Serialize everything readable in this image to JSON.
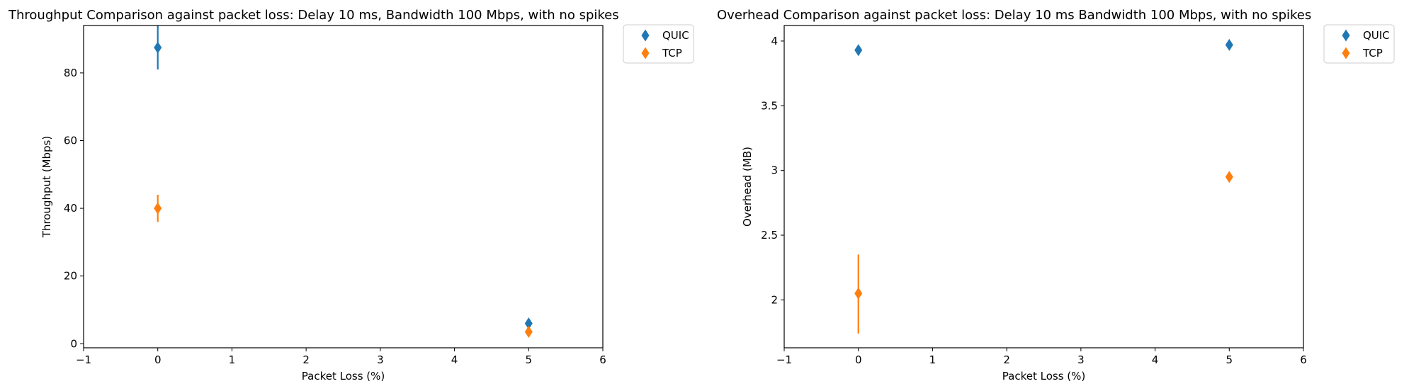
{
  "colors": {
    "quic": "#1f77b4",
    "tcp": "#ff7f0e",
    "axis": "#000000"
  },
  "chart_data": [
    {
      "type": "scatter",
      "title": "Throughput Comparison against packet loss: Delay 10 ms, Bandwidth 100 Mbps, with no spikes",
      "xlabel": "Packet Loss (%)",
      "ylabel": "Throughput (Mbps)",
      "xlim": [
        -1,
        6
      ],
      "ylim": [
        -1.2,
        94
      ],
      "xticks": [
        -1,
        0,
        1,
        2,
        3,
        4,
        5,
        6
      ],
      "yticks": [
        0,
        20,
        40,
        60,
        80
      ],
      "legend_position": "outside-top-right",
      "series": [
        {
          "name": "QUIC",
          "color_key": "quic",
          "x": [
            0,
            5
          ],
          "y": [
            87.5,
            6
          ],
          "yerr_low": [
            81,
            5.5
          ],
          "yerr_high": [
            94,
            6.5
          ]
        },
        {
          "name": "TCP",
          "color_key": "tcp",
          "x": [
            0,
            5
          ],
          "y": [
            40,
            3.5
          ],
          "yerr_low": [
            36,
            3
          ],
          "yerr_high": [
            44,
            4
          ]
        }
      ]
    },
    {
      "type": "scatter",
      "title": "Overhead Comparison against packet loss: Delay 10 ms Bandwidth 100 Mbps, with no spikes",
      "xlabel": "Packet Loss (%)",
      "ylabel": "Overhead (MB)",
      "xlim": [
        -1,
        6
      ],
      "ylim": [
        1.63,
        4.12
      ],
      "xticks": [
        -1,
        0,
        1,
        2,
        3,
        4,
        5,
        6
      ],
      "yticks": [
        2.0,
        2.5,
        3.0,
        3.5,
        4.0
      ],
      "legend_position": "outside-top-right",
      "series": [
        {
          "name": "QUIC",
          "color_key": "quic",
          "x": [
            0,
            5
          ],
          "y": [
            3.93,
            3.97
          ],
          "yerr_low": [
            3.92,
            3.96
          ],
          "yerr_high": [
            3.94,
            3.98
          ]
        },
        {
          "name": "TCP",
          "color_key": "tcp",
          "x": [
            0,
            5
          ],
          "y": [
            2.05,
            2.95
          ],
          "yerr_low": [
            1.74,
            2.94
          ],
          "yerr_high": [
            2.35,
            2.96
          ]
        }
      ]
    }
  ]
}
